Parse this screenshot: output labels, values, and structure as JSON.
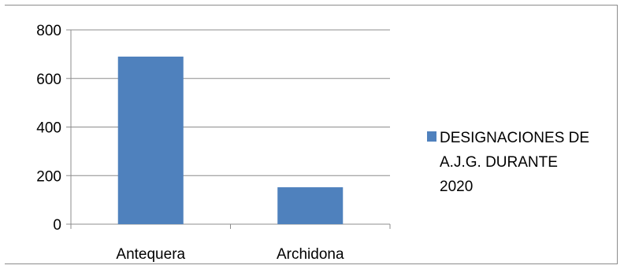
{
  "chart_data": {
    "type": "bar",
    "title": "",
    "xlabel": "",
    "ylabel": "",
    "categories": [
      "Antequera",
      "Archidona"
    ],
    "series": [
      {
        "name": "DESIGNACIONES DE A.J.G. DURANTE 2020",
        "values": [
          690,
          152
        ],
        "color": "#4f81bd"
      }
    ],
    "ylim": [
      0,
      800
    ],
    "yticks": [
      0,
      200,
      400,
      600,
      800
    ],
    "grid": true,
    "legend": {
      "placement": "right",
      "lines": [
        "DESIGNACIONES DE",
        "A.J.G. DURANTE",
        "2020"
      ]
    }
  }
}
